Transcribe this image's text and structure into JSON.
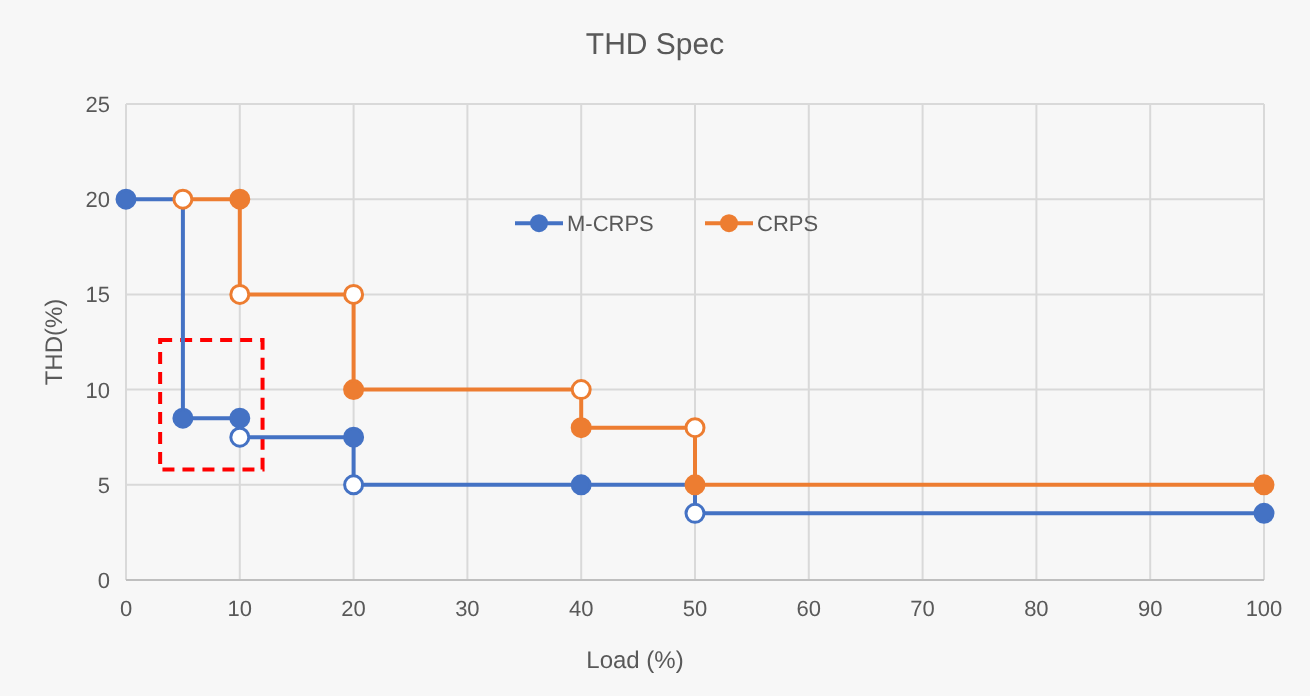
{
  "chart_data": {
    "type": "line",
    "title": "THD Spec",
    "xlabel": "Load (%)",
    "ylabel": "THD(%)",
    "xlim": [
      0,
      100
    ],
    "xticks": [
      0,
      10,
      20,
      30,
      40,
      50,
      60,
      70,
      80,
      90,
      100
    ],
    "ylim": [
      0,
      25
    ],
    "yticks": [
      0,
      5,
      10,
      15,
      20,
      25
    ],
    "grid": true,
    "legend": "top",
    "marker": "circle",
    "line_style": "solid",
    "series": [
      {
        "name": "M-CRPS",
        "color": "#4472c4",
        "x": [
          0,
          5,
          5,
          10,
          10,
          20,
          20,
          40,
          50,
          50,
          100
        ],
        "values": [
          20,
          20,
          8.5,
          8.5,
          7.5,
          7.5,
          5,
          5,
          5,
          3.5,
          3.5
        ],
        "colors": [
          "#4472c4",
          null,
          "#4472c4",
          "#4472c4",
          "#ffffff",
          "#4472c4",
          "#ffffff",
          "#4472c4",
          null,
          "#ffffff",
          "#4472c4"
        ]
      },
      {
        "name": "CRPS",
        "color": "#ed7d31",
        "x": [
          5,
          10,
          10,
          20,
          20,
          40,
          40,
          50,
          50,
          100
        ],
        "values": [
          20,
          20,
          15,
          15,
          10,
          10,
          8,
          8,
          5,
          5
        ],
        "colors": [
          "#ffffff",
          "#ed7d31",
          "#ffffff",
          "#ffffff",
          "#ed7d31",
          "#ffffff",
          "#ed7d31",
          "#ffffff",
          "#ed7d31",
          "#ed7d31"
        ]
      }
    ]
  }
}
